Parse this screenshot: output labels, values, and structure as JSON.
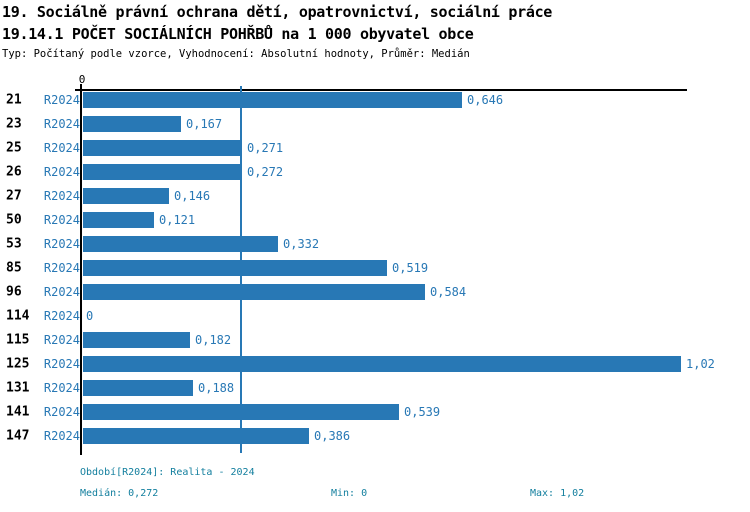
{
  "header": {
    "line1": "19. Sociálně právní ochrana dětí, opatrovnictví, sociální práce",
    "line2": "19.14.1 POČET SOCIÁLNÍCH POHŘBŮ na 1 000 obyvatel obce",
    "subtitle": "Typ: Počítaný podle vzorce, Vyhodnocení: Absolutní hodnoty, Průměr: Medián"
  },
  "chart_data": {
    "type": "bar",
    "orientation": "horizontal",
    "title": "19.14.1 POČET SOCIÁLNÍCH POHŘBŮ na 1 000 obyvatel obce",
    "categories": [
      "21",
      "23",
      "25",
      "26",
      "27",
      "50",
      "53",
      "85",
      "96",
      "114",
      "115",
      "125",
      "131",
      "141",
      "147"
    ],
    "period_label": "R2024",
    "values": [
      0.646,
      0.167,
      0.271,
      0.272,
      0.146,
      0.121,
      0.332,
      0.519,
      0.584,
      0,
      0.182,
      1.02,
      0.188,
      0.539,
      0.386
    ],
    "value_labels": [
      "0,646",
      "0,167",
      "0,271",
      "0,272",
      "0,146",
      "0,121",
      "0,332",
      "0,519",
      "0,584",
      "0",
      "0,182",
      "1,02",
      "0,188",
      "0,539",
      "0,386"
    ],
    "xlim": [
      0,
      1.02
    ],
    "x_zero_tick_label": "0",
    "median_value": 0.272,
    "grid": "off",
    "colors": {
      "bar": "#2878b5",
      "value_text": "#2878b5",
      "median_line": "#2878b5",
      "footer_text": "#137f9e",
      "axis": "#000000"
    }
  },
  "footer": {
    "period_info": "Období[R2024]: Realita - 2024",
    "median": "Medián: 0,272",
    "min": "Min: 0",
    "max": "Max: 1,02"
  }
}
